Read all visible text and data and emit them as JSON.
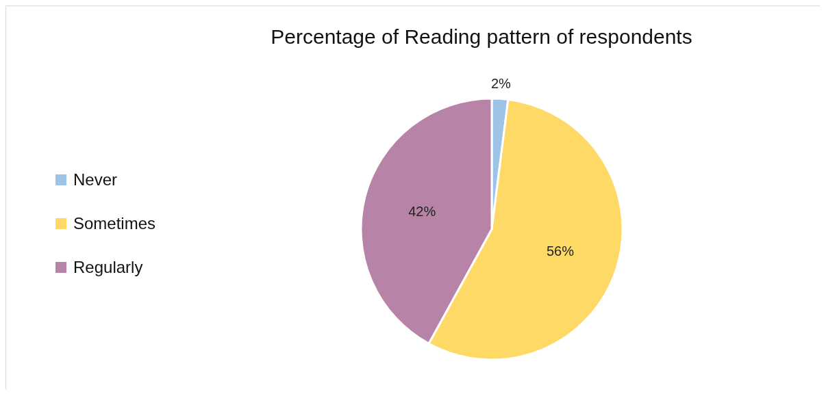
{
  "chart_data": {
    "type": "pie",
    "title": "Percentage of Reading pattern of respondents",
    "categories": [
      "Never",
      "Sometimes",
      "Regularly"
    ],
    "values": [
      2,
      56,
      42
    ],
    "colors": [
      "#9dc3e6",
      "#ffd966",
      "#b784a7"
    ],
    "value_labels": [
      "2%",
      "56%",
      "42%"
    ],
    "legend": "left"
  }
}
